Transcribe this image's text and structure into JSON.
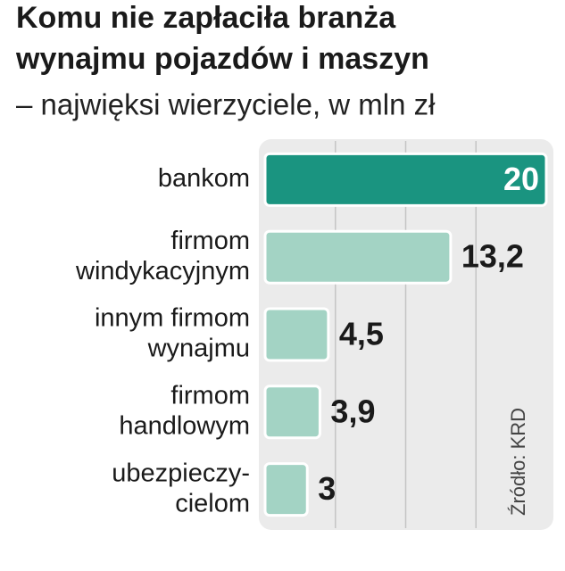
{
  "chart_data": {
    "type": "bar",
    "orientation": "horizontal",
    "title": [
      "Komu nie zapłaciła branża",
      "wynajmu pojazdów i maszyn"
    ],
    "subtitle": "– najwięksi wierzyciele, w mln zł",
    "source": "Źródło: KRD",
    "categories": [
      [
        "bankom"
      ],
      [
        "firmom",
        "windykacyjnym"
      ],
      [
        "innym firmom",
        "wynajmu"
      ],
      [
        "firmom",
        "handlowym"
      ],
      [
        "ubezpieczy-",
        "cielom"
      ]
    ],
    "values": [
      20,
      13.2,
      4.5,
      3.9,
      3
    ],
    "value_labels": [
      "20",
      "13,2",
      "4,5",
      "3,9",
      "3"
    ],
    "colors": [
      "#1a9480",
      "#a3d3c4",
      "#a3d3c4",
      "#a3d3c4",
      "#a3d3c4"
    ],
    "xlim": [
      0,
      20
    ],
    "xticks": [
      5,
      10,
      15
    ],
    "grid": true
  }
}
